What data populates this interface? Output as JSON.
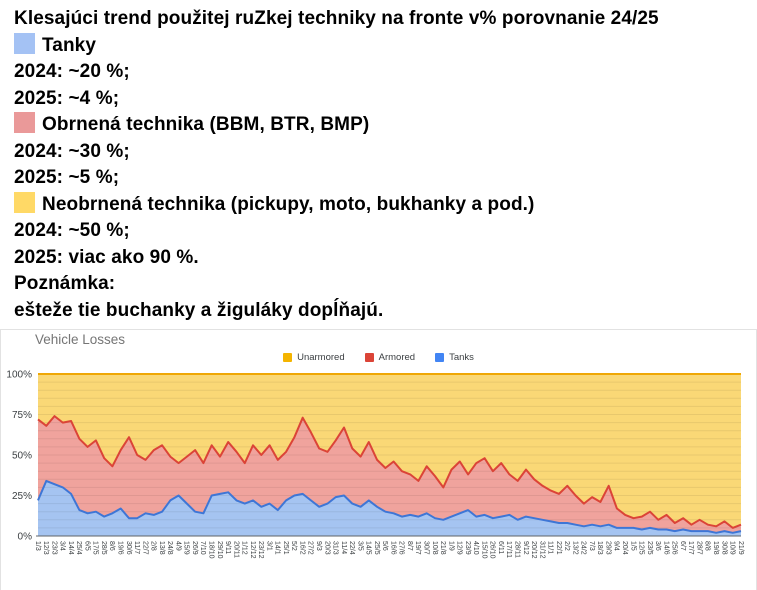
{
  "note": {
    "title": "Klesajúci trend použitej ruZkej techniky na fronte v% porovnanie 24/25",
    "items": [
      {
        "swatch": "#A4C2F4",
        "label": "Tanky",
        "lines": [
          "2024: ~20 %;",
          "2025: ~4 %;"
        ]
      },
      {
        "swatch": "#EA9999",
        "label": "Obrnená technika (BBM, BTR, BMP)",
        "lines": [
          "2024: ~30 %;",
          "2025: ~5 %;"
        ]
      },
      {
        "swatch": "#FFD966",
        "label": "Neobrnená technika (pickupy, moto, bukhanky a pod.)",
        "lines": [
          "2024: ~50 %;",
          "2025: viac ako 90 %."
        ]
      }
    ],
    "footer_label": "Poznámka:",
    "footer_text": "ešteže tie buchanky a žiguláky dopĺňajú."
  },
  "chart": {
    "title": "Vehicle Losses",
    "legend": [
      {
        "label": "Unarmored",
        "color": "#F4B400"
      },
      {
        "label": "Armored",
        "color": "#DB4437"
      },
      {
        "label": "Tanks",
        "color": "#4285F4"
      }
    ]
  },
  "chart_data": {
    "type": "area",
    "stacked_percent": true,
    "title": "Vehicle Losses",
    "ylim": [
      0,
      100
    ],
    "y_ticks": [
      0,
      25,
      50,
      75,
      100
    ],
    "y_tick_labels": [
      "0%",
      "25%",
      "50%",
      "75%",
      "100%"
    ],
    "grid": "minor lines every 5%",
    "legend_position": "top-center",
    "x": [
      "1/3",
      "12/3",
      "23/3",
      "3/4",
      "14/4",
      "25/4",
      "6/5",
      "17/5",
      "28/5",
      "8/6",
      "19/6",
      "30/6",
      "11/7",
      "22/7",
      "2/8",
      "13/8",
      "24/8",
      "4/9",
      "15/9",
      "26/9",
      "7/10",
      "18/10",
      "29/10",
      "9/11",
      "20/11",
      "1/12",
      "12/12",
      "23/12",
      "3/1",
      "14/1",
      "25/1",
      "5/2",
      "16/2",
      "27/2",
      "9/3",
      "20/3",
      "31/3",
      "11/4",
      "22/4",
      "3/5",
      "14/5",
      "25/5",
      "5/6",
      "16/6",
      "27/6",
      "8/7",
      "19/7",
      "30/7",
      "10/8",
      "21/8",
      "1/9",
      "12/9",
      "23/9",
      "4/10",
      "15/10",
      "26/10",
      "6/11",
      "17/11",
      "28/11",
      "9/12",
      "20/12",
      "31/12",
      "11/1",
      "22/1",
      "2/2",
      "13/2",
      "24/2",
      "7/3",
      "18/3",
      "29/3",
      "9/4",
      "20/4",
      "1/5",
      "12/5",
      "23/5",
      "3/6",
      "14/6",
      "25/6",
      "6/7",
      "17/7",
      "28/7",
      "8/8",
      "19/8",
      "30/8",
      "10/9",
      "21/9"
    ],
    "series": [
      {
        "name": "Tanks",
        "color": "#3E76D6",
        "fill": "#A5C4F1",
        "values": [
          22,
          34,
          32,
          30,
          26,
          16,
          14,
          15,
          12,
          14,
          17,
          11,
          11,
          14,
          13,
          15,
          22,
          25,
          20,
          15,
          14,
          25,
          26,
          27,
          22,
          20,
          22,
          18,
          20,
          16,
          22,
          25,
          26,
          22,
          18,
          20,
          24,
          25,
          20,
          18,
          22,
          18,
          15,
          14,
          12,
          13,
          12,
          14,
          11,
          10,
          12,
          14,
          16,
          12,
          13,
          11,
          12,
          13,
          10,
          12,
          11,
          10,
          9,
          8,
          8,
          7,
          6,
          7,
          6,
          7,
          5,
          5,
          5,
          4,
          5,
          4,
          4,
          3,
          4,
          3,
          3,
          3,
          2,
          3,
          2,
          3
        ]
      },
      {
        "name": "Armored",
        "color": "#DB4437",
        "fill": "#F0A39D",
        "values": [
          50,
          34,
          42,
          40,
          45,
          44,
          41,
          44,
          36,
          29,
          36,
          50,
          39,
          33,
          40,
          41,
          27,
          20,
          29,
          38,
          31,
          31,
          23,
          31,
          30,
          25,
          34,
          32,
          36,
          31,
          30,
          36,
          47,
          42,
          36,
          32,
          35,
          42,
          34,
          31,
          36,
          29,
          27,
          32,
          28,
          25,
          22,
          29,
          26,
          20,
          29,
          32,
          22,
          33,
          35,
          29,
          33,
          25,
          24,
          29,
          24,
          21,
          19,
          18,
          23,
          18,
          14,
          17,
          15,
          24,
          12,
          8,
          6,
          8,
          10,
          6,
          9,
          5,
          7,
          4,
          7,
          4,
          4,
          6,
          3,
          4
        ]
      },
      {
        "name": "Unarmored",
        "color": "#EFA705",
        "fill": "#FAD876",
        "values": [
          28,
          32,
          26,
          30,
          29,
          40,
          45,
          41,
          52,
          57,
          47,
          39,
          50,
          53,
          47,
          44,
          51,
          55,
          51,
          47,
          55,
          44,
          51,
          42,
          48,
          55,
          44,
          50,
          44,
          53,
          48,
          39,
          27,
          36,
          46,
          48,
          41,
          33,
          46,
          51,
          42,
          53,
          58,
          54,
          60,
          62,
          66,
          57,
          63,
          70,
          59,
          54,
          62,
          55,
          52,
          60,
          55,
          62,
          66,
          59,
          65,
          69,
          72,
          74,
          69,
          75,
          80,
          76,
          79,
          69,
          83,
          87,
          89,
          88,
          85,
          90,
          87,
          92,
          89,
          93,
          90,
          93,
          94,
          91,
          95,
          93
        ]
      }
    ]
  }
}
